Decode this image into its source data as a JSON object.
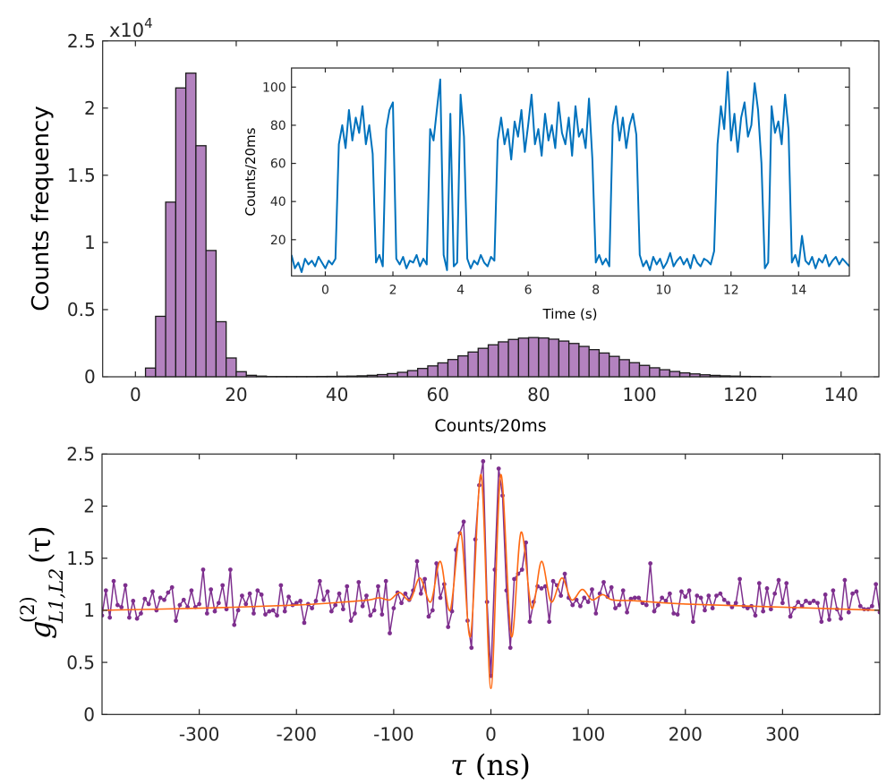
{
  "colors": {
    "histogram_fill": "#b382bf",
    "histogram_edge": "#1a1a1a",
    "inset_line": "#0072bd",
    "data_series": "#7e2f8e",
    "fit_series": "#ff6a13",
    "axis": "#262626"
  },
  "chart_data": [
    {
      "type": "bar",
      "panel": "histogram",
      "xlabel": "Counts/20ms",
      "ylabel": "Counts frequency",
      "y_multiplier_label": "x10",
      "y_multiplier_exponent": "4",
      "xlim": [
        -6.5,
        147.5
      ],
      "ylim": [
        0,
        25000
      ],
      "xticks": [
        0,
        20,
        40,
        60,
        80,
        100,
        120,
        140
      ],
      "xtick_labels": [
        "0",
        "20",
        "40",
        "60",
        "80",
        "100",
        "120",
        "140"
      ],
      "yticks": [
        0,
        5000,
        10000,
        15000,
        20000,
        25000
      ],
      "ytick_labels": [
        "0",
        "0.5",
        "1",
        "1.5",
        "2",
        "2.5"
      ],
      "bin_start": 0,
      "bin_width": 2,
      "counts": [
        0,
        650,
        4500,
        13000,
        21500,
        22600,
        17200,
        9400,
        4100,
        1400,
        380,
        110,
        50,
        20,
        20,
        20,
        20,
        20,
        25,
        30,
        40,
        50,
        72,
        110,
        164,
        237,
        333,
        460,
        620,
        812,
        1035,
        1285,
        1556,
        1843,
        2120,
        2380,
        2600,
        2780,
        2880,
        2920,
        2890,
        2800,
        2660,
        2480,
        2260,
        2020,
        1770,
        1520,
        1275,
        1050,
        850,
        670,
        525,
        395,
        290,
        215,
        150,
        105,
        70,
        50,
        30,
        20,
        10
      ],
      "grid": false
    },
    {
      "type": "line",
      "panel": "inset",
      "xlabel": "Time (s)",
      "ylabel": "Counts/20ms",
      "xlim": [
        -1,
        15.5
      ],
      "ylim": [
        1,
        110
      ],
      "xticks": [
        0,
        2,
        4,
        6,
        8,
        10,
        12,
        14
      ],
      "xtick_labels": [
        "0",
        "2",
        "4",
        "6",
        "8",
        "10",
        "12",
        "14"
      ],
      "yticks": [
        20,
        40,
        60,
        80,
        100
      ],
      "ytick_labels": [
        "20",
        "40",
        "60",
        "80",
        "100"
      ],
      "x_start": -1,
      "x_step": 0.1,
      "values": [
        12,
        5,
        8,
        3,
        10,
        7,
        9,
        6,
        11,
        8,
        5,
        9,
        7,
        10,
        70,
        80,
        68,
        88,
        72,
        84,
        76,
        90,
        70,
        80,
        65,
        8,
        12,
        6,
        78,
        88,
        92,
        10,
        7,
        11,
        5,
        9,
        8,
        12,
        6,
        10,
        7,
        78,
        72,
        88,
        104,
        12,
        4,
        86,
        6,
        8,
        96,
        74,
        10,
        5,
        9,
        7,
        12,
        8,
        6,
        11,
        9,
        72,
        84,
        70,
        78,
        62,
        82,
        74,
        88,
        66,
        80,
        96,
        70,
        78,
        64,
        86,
        72,
        80,
        68,
        92,
        76,
        70,
        84,
        64,
        90,
        74,
        78,
        68,
        94,
        62,
        8,
        12,
        7,
        10,
        6,
        80,
        90,
        72,
        84,
        68,
        80,
        86,
        75,
        12,
        6,
        9,
        4,
        11,
        7,
        10,
        5,
        8,
        13,
        6,
        9,
        11,
        7,
        10,
        5,
        12,
        8,
        6,
        10,
        9,
        7,
        14,
        70,
        90,
        78,
        108,
        72,
        86,
        66,
        84,
        92,
        74,
        80,
        102,
        88,
        60,
        5,
        8,
        90,
        76,
        82,
        70,
        96,
        78,
        8,
        12,
        6,
        22,
        9,
        7,
        11,
        5,
        10,
        8,
        12,
        6,
        9,
        11,
        7,
        10,
        8,
        6
      ],
      "grid": false
    },
    {
      "type": "line",
      "panel": "correlation",
      "xlabel_symbol": "τ",
      "xlabel_unit": "(ns)",
      "ylabel_base": "g",
      "ylabel_superscript": "(2)",
      "ylabel_subscript": "L1,L2",
      "ylabel_argument": "(τ)",
      "xlim": [
        -400,
        400
      ],
      "ylim": [
        0,
        2.5
      ],
      "xticks": [
        -300,
        -200,
        -100,
        0,
        100,
        200,
        300
      ],
      "xtick_labels": [
        "-300",
        "-200",
        "-100",
        "0",
        "100",
        "200",
        "300"
      ],
      "yticks": [
        0,
        0.5,
        1,
        1.5,
        2,
        2.5
      ],
      "ytick_labels": [
        "0",
        "0.5",
        "1",
        "1.5",
        "2",
        "2.5"
      ],
      "series": [
        {
          "role": "measured",
          "marker": "dot",
          "x_start": -400,
          "x_step": 4,
          "values": [
            0.95,
            1.19,
            0.93,
            1.28,
            1.05,
            1.03,
            1.24,
            0.93,
            1.09,
            0.92,
            0.97,
            1.11,
            1.06,
            1.18,
            1.0,
            1.12,
            1.1,
            1.17,
            1.22,
            0.9,
            1.05,
            1.1,
            1.03,
            1.19,
            1.03,
            1.06,
            1.39,
            0.97,
            1.2,
            0.99,
            1.07,
            1.24,
            1.01,
            1.39,
            0.86,
            1.0,
            1.14,
            1.06,
            1.16,
            0.97,
            1.19,
            1.15,
            0.96,
            0.99,
            1.0,
            0.95,
            1.24,
            0.99,
            1.13,
            1.05,
            1.07,
            1.09,
            0.88,
            1.06,
            1.02,
            1.09,
            1.28,
            1.1,
            1.18,
            0.99,
            1.05,
            1.16,
            1.01,
            1.23,
            0.9,
            0.97,
            1.27,
            1.04,
            1.14,
            0.95,
            1.0,
            1.23,
            0.96,
            1.28,
            0.78,
            1.02,
            1.17,
            1.07,
            1.16,
            1.1,
            1.19,
            1.47,
            1.16,
            1.3,
            0.94,
            1.0,
            1.45,
            1.12,
            1.25,
            0.84,
            0.99,
            1.58,
            1.74,
            1.85,
            0.9,
            0.64,
            1.68,
            2.2,
            2.43,
            1.08,
            0.37,
            1.39,
            2.36,
            2.1,
            1.19,
            0.64,
            1.3,
            1.35,
            1.39,
            1.65,
            0.89,
            1.08,
            1.23,
            1.21,
            1.23,
            0.89,
            1.28,
            1.24,
            1.14,
            1.35,
            1.12,
            1.05,
            1.1,
            1.04,
            1.12,
            1.08,
            1.2,
            0.97,
            1.16,
            1.27,
            1.13,
            1.22,
            1.02,
            1.05,
            1.19,
            0.98,
            1.11,
            1.12,
            1.12,
            1.07,
            1.05,
            1.45,
            0.99,
            1.05,
            1.12,
            1.09,
            1.16,
            0.97,
            0.96,
            1.18,
            1.13,
            1.19,
            0.89,
            1.14,
            1.12,
            1.0,
            1.14,
            1.02,
            1.14,
            1.16,
            1.1,
            1.07,
            1.03,
            1.07,
            1.3,
            1.04,
            1.02,
            1.04,
            0.95,
            1.26,
            0.99,
            1.21,
            1.01,
            1.16,
            1.29,
            1.07,
            1.26,
            0.94,
            1.02,
            1.08,
            1.04,
            1.09,
            1.07,
            1.09,
            1.07,
            0.89,
            1.15,
            0.91,
            1.19,
            1.01,
            0.92,
            1.29,
            0.98,
            1.16,
            1.18,
            1.04,
            1.01,
            1.01,
            1.04,
            1.25,
            0.98
          ]
        },
        {
          "role": "fit",
          "marker": "none",
          "x": [
            -400,
            -300,
            -200,
            -150,
            -125,
            -115,
            -104,
            -94,
            -83,
            -73,
            -62,
            -52,
            -42,
            -31,
            -21,
            -10,
            0,
            10,
            21,
            31,
            42,
            52,
            62,
            73,
            83,
            94,
            104,
            115,
            125,
            150,
            200,
            300,
            400
          ],
          "values": [
            1.0,
            1.02,
            1.05,
            1.08,
            1.1,
            1.12,
            1.1,
            1.17,
            1.1,
            1.31,
            1.08,
            1.47,
            1.0,
            1.75,
            0.75,
            2.3,
            0.25,
            2.3,
            0.75,
            1.75,
            1.02,
            1.47,
            1.08,
            1.31,
            1.1,
            1.2,
            1.1,
            1.15,
            1.1,
            1.09,
            1.06,
            1.03,
            1.0
          ]
        }
      ],
      "grid": false
    }
  ]
}
